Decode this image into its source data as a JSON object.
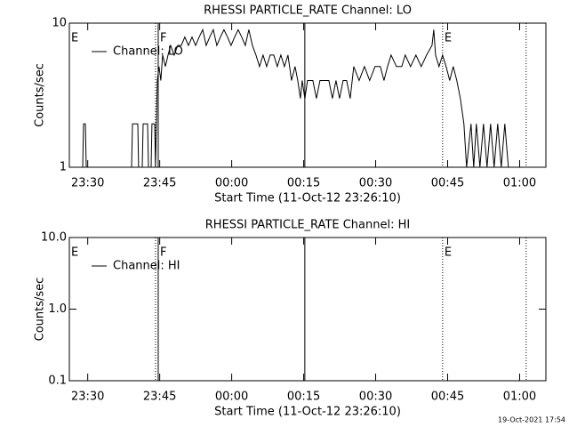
{
  "chart_data": [
    {
      "type": "line",
      "title": "RHESSI PARTICLE_RATE Channel: LO",
      "xlabel": "Start Time (11-Oct-12 23:26:10)",
      "ylabel": "Counts/sec",
      "log_y": true,
      "xlim": [
        0,
        99.3
      ],
      "ylim": [
        1,
        10
      ],
      "yticks": [
        10,
        1
      ],
      "xticks": [
        {
          "value": 3.83,
          "label": "23:30"
        },
        {
          "value": 18.83,
          "label": "23:45"
        },
        {
          "value": 33.83,
          "label": "00:00"
        },
        {
          "value": 48.83,
          "label": "00:15"
        },
        {
          "value": 63.83,
          "label": "00:30"
        },
        {
          "value": 78.83,
          "label": "00:45"
        },
        {
          "value": 93.83,
          "label": "01:00"
        }
      ],
      "legend": "upper left",
      "vlines": [
        {
          "x": 17.96,
          "style": "dotted"
        },
        {
          "x": 18.52,
          "style": "solid"
        },
        {
          "x": 49.07,
          "style": "solid"
        },
        {
          "x": 77.78,
          "style": "dotted"
        },
        {
          "x": 95.19,
          "style": "dotted"
        }
      ],
      "flags": [
        {
          "label": "E",
          "x": 0
        },
        {
          "label": "F",
          "x": 18.52
        },
        {
          "label": "E",
          "x": 77.78
        }
      ],
      "series": [
        {
          "name": "Channel: LO",
          "color": "#000000",
          "x": [
            0,
            2.78,
            2.96,
            3.33,
            3.52,
            12.96,
            13.15,
            14.26,
            14.44,
            15.19,
            15.37,
            16.3,
            16.48,
            17.04,
            17.22,
            17.78,
            17.96,
            18.33,
            18.7,
            19.07,
            19.44,
            20,
            20.56,
            21.11,
            21.85,
            22.59,
            23.33,
            24.07,
            24.81,
            25.56,
            26.3,
            27.04,
            27.78,
            28.52,
            29.26,
            30,
            30.74,
            31.48,
            32.22,
            32.96,
            33.7,
            34.44,
            35.19,
            35.93,
            36.67,
            37.41,
            38.15,
            38.89,
            39.63,
            40.37,
            41.11,
            41.85,
            42.59,
            43.33,
            44.07,
            44.81,
            45.56,
            46.3,
            47.04,
            47.59,
            48.15,
            48.52,
            49.07,
            49.63,
            50.74,
            51.48,
            52.22,
            54.07,
            54.81,
            55.56,
            56.3,
            57.04,
            57.78,
            58.52,
            59.26,
            60.37,
            61.48,
            62.59,
            63.7,
            64.81,
            65.56,
            66.3,
            67.04,
            68.15,
            69.26,
            70,
            71.11,
            72.22,
            73.33,
            74.44,
            75.56,
            75.93,
            76.3,
            77.04,
            77.78,
            78.52,
            79.26,
            80,
            80.74,
            81.48,
            82.22,
            82.78,
            83.7,
            84.26,
            84.81,
            85.56,
            86.3,
            87.04,
            87.78,
            88.52,
            89.26,
            90,
            90.74,
            91.48,
            92.22
          ],
          "values": [
            1,
            1,
            2,
            2,
            1,
            1,
            2,
            2,
            1,
            1,
            2,
            2,
            1,
            1,
            2,
            2,
            1,
            4,
            5,
            4,
            6,
            5,
            6,
            7,
            6,
            7,
            7,
            8,
            7,
            8,
            7,
            8,
            9,
            7,
            8,
            9,
            7,
            8,
            9,
            8,
            7,
            8,
            9,
            8,
            7,
            9,
            7,
            6,
            5,
            6,
            5,
            6,
            6,
            5,
            6,
            5,
            6,
            4,
            5,
            4,
            3,
            4,
            3,
            4,
            4,
            3,
            4,
            4,
            3,
            4,
            3,
            4,
            4,
            3,
            5,
            4,
            5,
            4,
            5,
            5,
            4,
            5,
            6,
            5,
            5,
            6,
            5,
            6,
            5,
            6,
            7,
            9,
            6,
            5,
            6,
            5,
            4,
            5,
            4,
            3,
            2,
            1,
            2,
            1,
            2,
            1,
            2,
            1,
            2,
            1,
            2,
            1,
            2,
            1,
            1
          ]
        }
      ]
    },
    {
      "type": "line",
      "title": "RHESSI PARTICLE_RATE Channel: HI",
      "xlabel": "Start Time (11-Oct-12 23:26:10)",
      "ylabel": "Counts/sec",
      "log_y": true,
      "xlim": [
        0,
        99.3
      ],
      "ylim": [
        0.1,
        10
      ],
      "yticks": [
        {
          "value": 10,
          "label": "10.0"
        },
        {
          "value": 1,
          "label": "1.0"
        },
        0.1
      ],
      "xticks": [
        {
          "value": 3.83,
          "label": "23:30"
        },
        {
          "value": 18.83,
          "label": "23:45"
        },
        {
          "value": 33.83,
          "label": "00:00"
        },
        {
          "value": 48.83,
          "label": "00:15"
        },
        {
          "value": 63.83,
          "label": "00:30"
        },
        {
          "value": 78.83,
          "label": "00:45"
        },
        {
          "value": 93.83,
          "label": "01:00"
        }
      ],
      "legend": "upper left",
      "vlines": [
        {
          "x": 17.96,
          "style": "dotted"
        },
        {
          "x": 18.52,
          "style": "solid"
        },
        {
          "x": 49.07,
          "style": "solid"
        },
        {
          "x": 77.78,
          "style": "dotted"
        },
        {
          "x": 95.19,
          "style": "dotted"
        }
      ],
      "flags": [
        {
          "label": "E",
          "x": 0
        },
        {
          "label": "F",
          "x": 18.52
        },
        {
          "label": "E",
          "x": 77.78
        }
      ],
      "series": [
        {
          "name": "Channel: HI",
          "color": "#000000",
          "x": [],
          "values": []
        }
      ]
    }
  ],
  "footer": "19-Oct-2021 17:54"
}
